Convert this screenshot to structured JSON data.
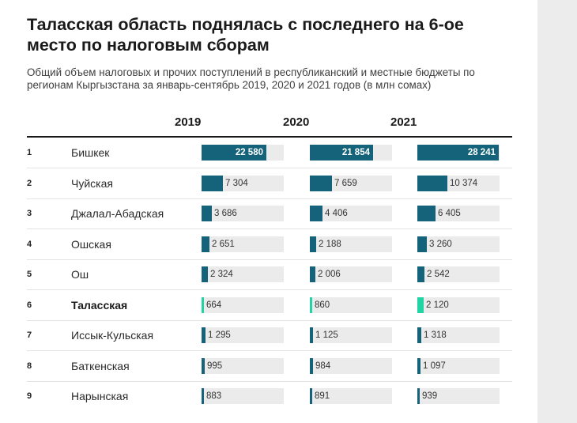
{
  "header": {
    "title": "Таласская область поднялась с последнего на 6-ое место по налоговым сборам",
    "subtitle": "Общий объем налоговых и прочих поступлений в республиканский и местные бюджеты по регионам Кыргызстана за январь-сентябрь 2019, 2020 и 2021 годов (в млн сомах)"
  },
  "colors": {
    "bar": "#14637b",
    "highlight": "#22d3a3",
    "track": "#ebebeb"
  },
  "chart_data": {
    "type": "bar",
    "title": "Таласская область поднялась с последнего на 6-ое место по налоговым сборам",
    "subtitle": "Общий объем налоговых и прочих поступлений в республиканский и местные бюджеты по регионам Кыргызстана за январь-сентябрь 2019, 2020 и 2021 годов (в млн сомах)",
    "columns": [
      "2019",
      "2020",
      "2021"
    ],
    "xlim": [
      0,
      28500
    ],
    "highlight": "Таласская",
    "rows": [
      {
        "rank": "1",
        "region": "Бишкек",
        "values": [
          22580,
          21854,
          28241
        ],
        "labels": [
          "22 580",
          "21 854",
          "28 241"
        ]
      },
      {
        "rank": "2",
        "region": "Чуйская",
        "values": [
          7304,
          7659,
          10374
        ],
        "labels": [
          "7 304",
          "7 659",
          "10 374"
        ]
      },
      {
        "rank": "3",
        "region": "Джалал-Абадская",
        "values": [
          3686,
          4406,
          6405
        ],
        "labels": [
          "3 686",
          "4 406",
          "6 405"
        ]
      },
      {
        "rank": "4",
        "region": "Ошская",
        "values": [
          2651,
          2188,
          3260
        ],
        "labels": [
          "2 651",
          "2 188",
          "3 260"
        ]
      },
      {
        "rank": "5",
        "region": "Ош",
        "values": [
          2324,
          2006,
          2542
        ],
        "labels": [
          "2 324",
          "2 006",
          "2 542"
        ]
      },
      {
        "rank": "6",
        "region": "Таласская",
        "values": [
          664,
          860,
          2120
        ],
        "labels": [
          "664",
          "860",
          "2 120"
        ]
      },
      {
        "rank": "7",
        "region": "Иссык-Кульская",
        "values": [
          1295,
          1125,
          1318
        ],
        "labels": [
          "1 295",
          "1 125",
          "1 318"
        ]
      },
      {
        "rank": "8",
        "region": "Баткенская",
        "values": [
          995,
          984,
          1097
        ],
        "labels": [
          "995",
          "984",
          "1 097"
        ]
      },
      {
        "rank": "9",
        "region": "Нарынская",
        "values": [
          883,
          891,
          939
        ],
        "labels": [
          "883",
          "891",
          "939"
        ]
      }
    ]
  }
}
